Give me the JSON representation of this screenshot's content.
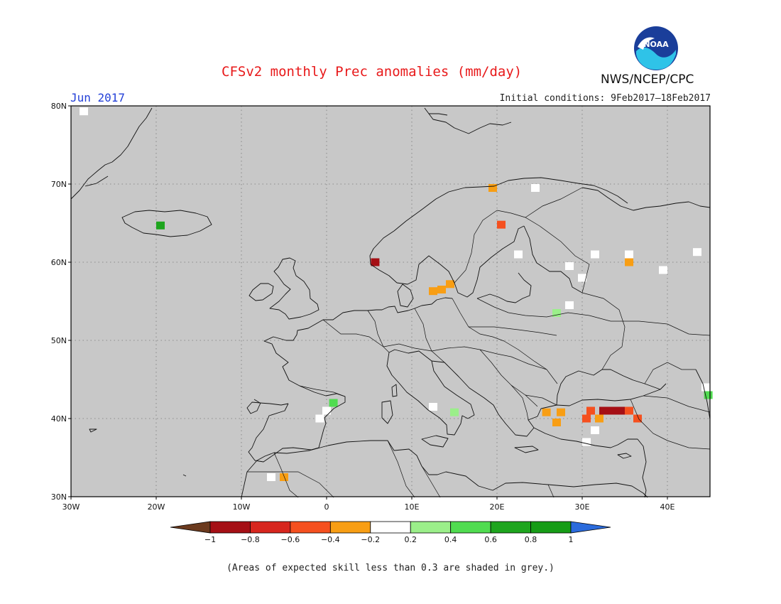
{
  "header": {
    "title": "CFSv2 monthly Prec anomalies (mm/day)",
    "month": "Jun 2017",
    "initial_conditions": "Initial conditions: 9Feb2017–18Feb2017",
    "agency": "NWS/NCEP/CPC",
    "logo_text": "NOAA"
  },
  "map": {
    "lon_range": [
      -30,
      45
    ],
    "lat_range": [
      30,
      80
    ],
    "background_color": "#c8c8c8",
    "grid": "dotted",
    "lon_labels": [
      "30W",
      "20W",
      "10W",
      "0",
      "10E",
      "20E",
      "30E",
      "40E"
    ],
    "lat_labels": [
      "80N",
      "70N",
      "60N",
      "50N",
      "40N",
      "30N"
    ],
    "anomaly_cells": [
      {
        "lon": -28.5,
        "lat": 79.3,
        "category": "neutral"
      },
      {
        "lon": -19.5,
        "lat": 64.7,
        "category": "wet_0.6_0.8"
      },
      {
        "lon": 5.7,
        "lat": 60.0,
        "category": "dry_0.8_1.0"
      },
      {
        "lon": 19.5,
        "lat": 69.5,
        "category": "dry_0.2_0.4"
      },
      {
        "lon": 24.5,
        "lat": 69.5,
        "category": "neutral"
      },
      {
        "lon": 20.5,
        "lat": 64.8,
        "category": "dry_0.4_0.6"
      },
      {
        "lon": 12.5,
        "lat": 56.3,
        "category": "dry_0.2_0.4"
      },
      {
        "lon": 13.5,
        "lat": 56.5,
        "category": "dry_0.2_0.4"
      },
      {
        "lon": 14.5,
        "lat": 57.2,
        "category": "dry_0.2_0.4"
      },
      {
        "lon": 22.5,
        "lat": 61.0,
        "category": "neutral"
      },
      {
        "lon": 28.5,
        "lat": 59.5,
        "category": "neutral"
      },
      {
        "lon": 30.0,
        "lat": 58.0,
        "category": "neutral"
      },
      {
        "lon": 31.5,
        "lat": 61.0,
        "category": "neutral"
      },
      {
        "lon": 35.5,
        "lat": 61.0,
        "category": "neutral"
      },
      {
        "lon": 35.5,
        "lat": 60.0,
        "category": "dry_0.2_0.4"
      },
      {
        "lon": 43.5,
        "lat": 61.3,
        "category": "neutral"
      },
      {
        "lon": 39.5,
        "lat": 59.0,
        "category": "neutral"
      },
      {
        "lon": 28.5,
        "lat": 54.5,
        "category": "neutral"
      },
      {
        "lon": 27.0,
        "lat": 53.5,
        "category": "wet_0.2_0.4"
      },
      {
        "lon": 0.8,
        "lat": 42.0,
        "category": "wet_0.4_0.6"
      },
      {
        "lon": 0.0,
        "lat": 41.0,
        "category": "neutral"
      },
      {
        "lon": -0.8,
        "lat": 40.0,
        "category": "neutral"
      },
      {
        "lon": 15.0,
        "lat": 40.8,
        "category": "wet_0.2_0.4"
      },
      {
        "lon": 12.5,
        "lat": 41.5,
        "category": "neutral"
      },
      {
        "lon": 25.8,
        "lat": 40.8,
        "category": "dry_0.2_0.4"
      },
      {
        "lon": 27.5,
        "lat": 40.8,
        "category": "dry_0.2_0.4"
      },
      {
        "lon": 27.0,
        "lat": 39.5,
        "category": "dry_0.2_0.4"
      },
      {
        "lon": 30.5,
        "lat": 40.0,
        "category": "dry_0.4_0.6"
      },
      {
        "lon": 32.0,
        "lat": 40.0,
        "category": "dry_0.2_0.4"
      },
      {
        "lon": 31.0,
        "lat": 41.0,
        "category": "dry_0.4_0.6"
      },
      {
        "lon": 32.5,
        "lat": 41.0,
        "category": "dry_0.8_1.0"
      },
      {
        "lon": 33.5,
        "lat": 41.0,
        "category": "dry_0.8_1.0"
      },
      {
        "lon": 34.5,
        "lat": 41.0,
        "category": "dry_0.8_1.0"
      },
      {
        "lon": 35.5,
        "lat": 41.0,
        "category": "dry_0.4_0.6"
      },
      {
        "lon": 36.5,
        "lat": 40.0,
        "category": "dry_0.4_0.6"
      },
      {
        "lon": 30.5,
        "lat": 37.0,
        "category": "neutral"
      },
      {
        "lon": 31.5,
        "lat": 38.5,
        "category": "neutral"
      },
      {
        "lon": 44.5,
        "lat": 44.0,
        "category": "neutral"
      },
      {
        "lon": 44.8,
        "lat": 43.0,
        "category": "wet_0.4_0.6"
      },
      {
        "lon": -6.5,
        "lat": 32.5,
        "category": "neutral"
      },
      {
        "lon": -5.0,
        "lat": 32.5,
        "category": "dry_0.2_0.4"
      }
    ]
  },
  "colorbar": {
    "categories": [
      "dry_below_-1",
      "dry_0.8_1.0",
      "dry_0.6_0.8",
      "dry_0.4_0.6",
      "dry_0.2_0.4",
      "neutral",
      "wet_0.2_0.4",
      "wet_0.4_0.6",
      "wet_0.6_0.8",
      "wet_0.8_1.0",
      "wet_above_1"
    ],
    "colors": [
      "#6b3a1e",
      "#a50f15",
      "#d7261e",
      "#f5501f",
      "#f89e14",
      "#ffffff",
      "#9bef8a",
      "#50dc50",
      "#1ea51e",
      "#169c16",
      "#2b6bdc"
    ],
    "labels": [
      "−1",
      "−0.8",
      "−0.6",
      "−0.4",
      "−0.2",
      "0.2",
      "0.4",
      "0.6",
      "0.8",
      "1"
    ]
  },
  "footnote": "(Areas of expected skill less than 0.3 are shaded in grey.)"
}
